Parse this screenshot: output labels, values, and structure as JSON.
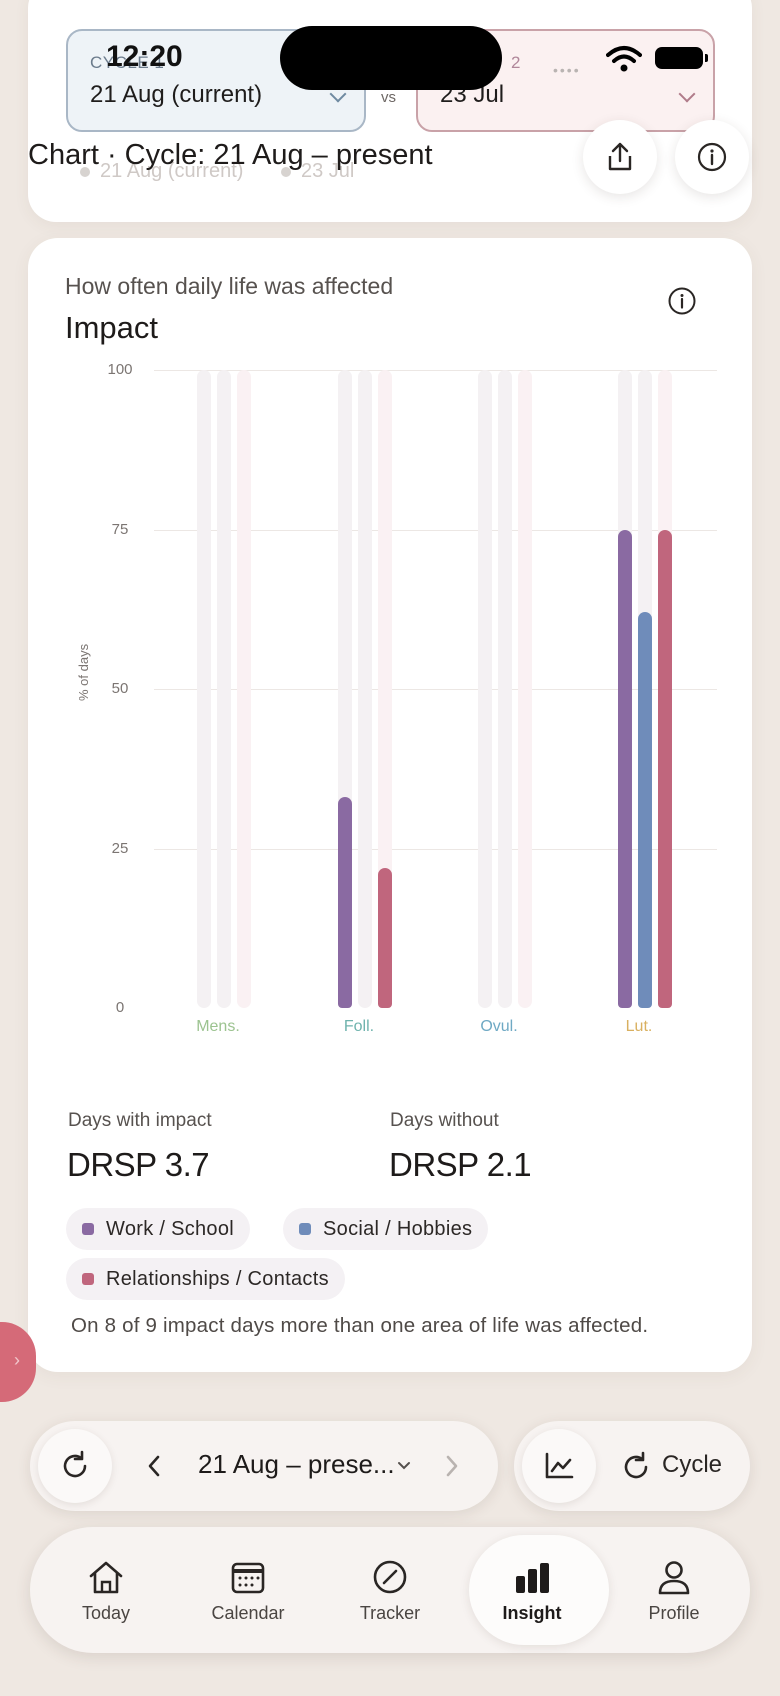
{
  "status_bar": {
    "time": "12:20"
  },
  "compare": {
    "left": {
      "label": "CYCLE 1",
      "value": "21 Aug (current)"
    },
    "vs": "vs",
    "right": {
      "label": "2",
      "value": "23 Jul"
    }
  },
  "chart_header": {
    "title": "Chart · Cycle: 21 Aug – present",
    "legend": [
      "21 Aug (current)",
      "23 Jul"
    ]
  },
  "impact": {
    "subtitle": "How often daily life was affected",
    "title": "Impact",
    "y_axis_title": "% of days",
    "y_ticks": [
      "100",
      "75",
      "50",
      "25",
      "0"
    ],
    "phases": [
      "Mens.",
      "Foll.",
      "Ovul.",
      "Lut."
    ],
    "stats": {
      "with_label": "Days with impact",
      "with_value": "DRSP 3.7",
      "without_label": "Days without",
      "without_value": "DRSP 2.1"
    },
    "legend": [
      "Work / School",
      "Social / Hobbies",
      "Relationships / Contacts"
    ],
    "note": "On 8 of 9 impact days more than one area of life was affected."
  },
  "chart_data": {
    "type": "bar",
    "categories": [
      "Mens.",
      "Foll.",
      "Ovul.",
      "Lut."
    ],
    "series": [
      {
        "name": "Work / School",
        "values": [
          0,
          33,
          0,
          75
        ]
      },
      {
        "name": "Social / Hobbies",
        "values": [
          0,
          0,
          0,
          62
        ]
      },
      {
        "name": "Relationships / Contacts",
        "values": [
          0,
          22,
          0,
          75
        ]
      }
    ],
    "ylabel": "% of days",
    "ylim": [
      0,
      100
    ],
    "grid": true
  },
  "colors": {
    "work": "#8a6aa2",
    "social": "#6f8cba",
    "relationships": "#c0667d",
    "phase_mens": "#9cc390",
    "phase_foll": "#6fb3ad",
    "phase_ovul": "#6fa9c4",
    "phase_lut": "#d9b060"
  },
  "period_bar": {
    "range": "21 Aug – prese...",
    "cycle_label": "Cycle"
  },
  "nav": {
    "items": [
      {
        "label": "Today",
        "icon": "home-icon"
      },
      {
        "label": "Calendar",
        "icon": "calendar-icon"
      },
      {
        "label": "Tracker",
        "icon": "compass-icon"
      },
      {
        "label": "Insight",
        "icon": "bar-chart-icon"
      },
      {
        "label": "Profile",
        "icon": "person-icon"
      }
    ]
  }
}
